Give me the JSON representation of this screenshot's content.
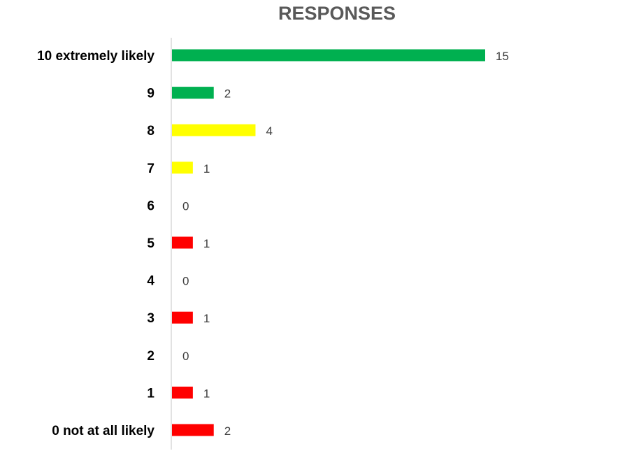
{
  "chart_data": {
    "type": "bar",
    "orientation": "horizontal",
    "title": "RESPONSES",
    "xlabel": "",
    "ylabel": "",
    "categories": [
      "10 extremely likely",
      "9",
      "8",
      "7",
      "6",
      "5",
      "4",
      "3",
      "2",
      "1",
      "0 not at all likely"
    ],
    "values": [
      15,
      2,
      4,
      1,
      0,
      1,
      0,
      1,
      0,
      1,
      2
    ],
    "bar_colors": [
      "#00B050",
      "#00B050",
      "#FFFF00",
      "#FFFF00",
      "#FF0000",
      "#FF0000",
      "#FF0000",
      "#FF0000",
      "#FF0000",
      "#FF0000",
      "#FF0000"
    ],
    "xlim": [
      0,
      15
    ],
    "grid": false,
    "legend": "none",
    "data_labels": true
  }
}
